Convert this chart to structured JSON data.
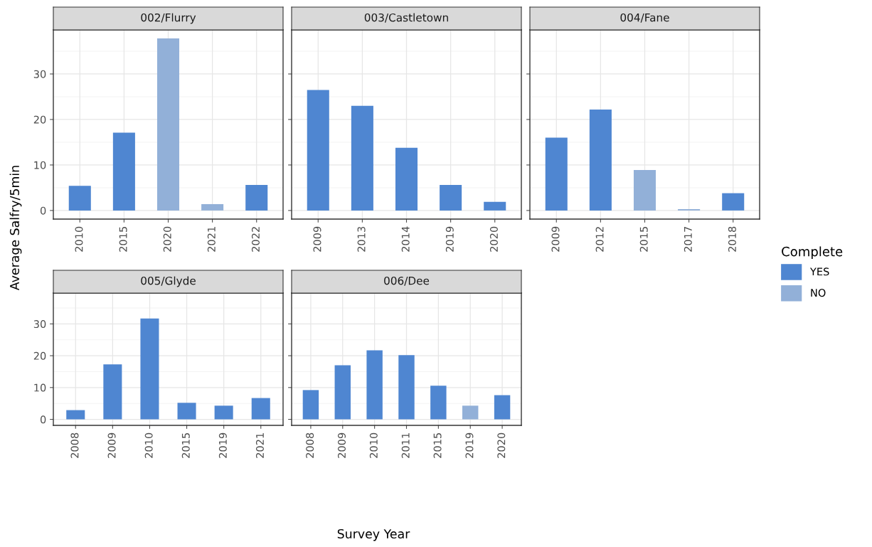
{
  "chart_data": [
    {
      "type": "bar",
      "title": "002/Flurry",
      "ylabel": "Average Salfry/5min",
      "categories": [
        "2010",
        "2015",
        "2020",
        "2021",
        "2022"
      ],
      "ylim": [
        -1.89,
        39.69
      ],
      "yticks": [
        0,
        10,
        20,
        30
      ],
      "grid": true,
      "series": [
        {
          "color": "#4f86d1",
          "values": [
            5.4,
            17.1,
            null,
            null,
            5.6
          ]
        },
        {
          "color": "#92b0d8",
          "values": [
            null,
            null,
            37.8,
            1.4,
            null
          ]
        }
      ]
    },
    {
      "type": "bar",
      "title": "003/Castletown",
      "categories": [
        "2009",
        "2013",
        "2014",
        "2019",
        "2020"
      ],
      "ylim": [
        -1.89,
        39.69
      ],
      "yticks": [
        0,
        10,
        20,
        30
      ],
      "grid": true,
      "tick_labels": "x",
      "series": [
        {
          "color": "#4f86d1",
          "values": [
            26.5,
            23.0,
            13.8,
            5.6,
            1.9
          ]
        }
      ]
    },
    {
      "type": "bar",
      "title": "004/Fane",
      "categories": [
        "2009",
        "2012",
        "2015",
        "2017",
        "2018"
      ],
      "ylim": [
        -1.89,
        39.69
      ],
      "yticks": [
        0,
        10,
        20,
        30
      ],
      "grid": true,
      "tick_labels": "x",
      "legend": "right",
      "legend_title": "Complete",
      "series": [
        {
          "name": "YES",
          "color": "#4f86d1",
          "values": [
            16.0,
            22.2,
            null,
            null,
            3.8
          ]
        },
        {
          "name": "NO",
          "color": "#92b0d8",
          "values": [
            null,
            null,
            8.9,
            0.3,
            null
          ]
        }
      ]
    },
    {
      "type": "bar",
      "title": "005/Glyde",
      "categories": [
        "2008",
        "2009",
        "2010",
        "2015",
        "2019",
        "2021"
      ],
      "ylim": [
        -1.89,
        39.69
      ],
      "yticks": [
        0,
        10,
        20,
        30
      ],
      "grid": true,
      "series": [
        {
          "color": "#4f86d1",
          "values": [
            2.9,
            17.3,
            31.7,
            5.2,
            4.3,
            6.7
          ]
        }
      ]
    },
    {
      "type": "bar",
      "title": "006/Dee",
      "xlabel": "Survey Year",
      "categories": [
        "2008",
        "2009",
        "2010",
        "2011",
        "2015",
        "2019",
        "2020"
      ],
      "ylim": [
        -1.89,
        39.69
      ],
      "yticks": [
        0,
        10,
        20,
        30
      ],
      "grid": true,
      "tick_labels": "x",
      "series": [
        {
          "color": "#4f86d1",
          "values": [
            9.2,
            17.0,
            21.7,
            20.2,
            10.6,
            null,
            7.6
          ]
        },
        {
          "color": "#92b0d8",
          "values": [
            null,
            null,
            null,
            null,
            null,
            4.3,
            null
          ]
        }
      ]
    }
  ]
}
